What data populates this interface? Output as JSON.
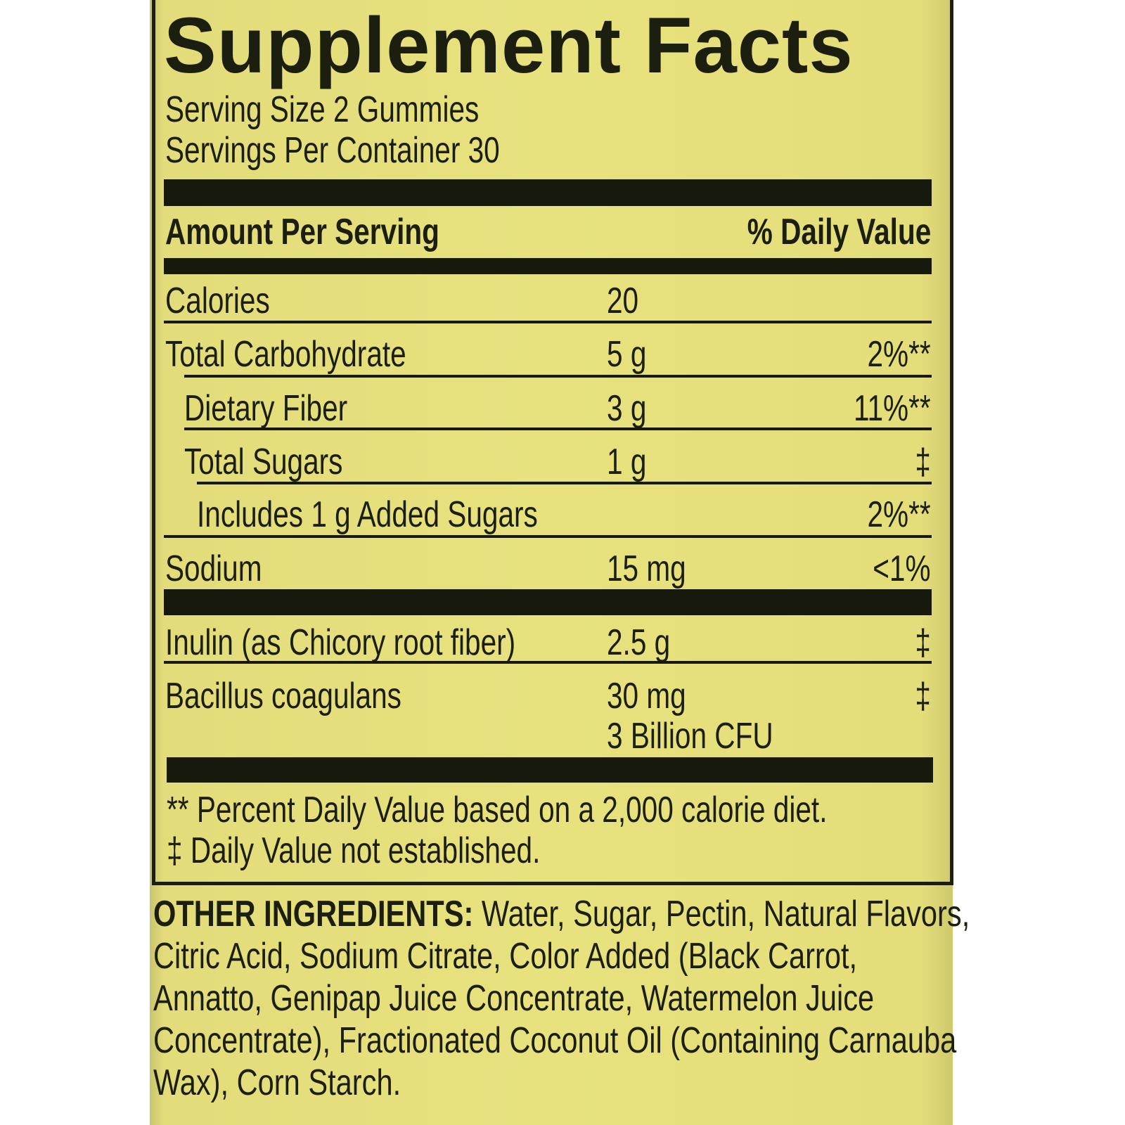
{
  "title": "Supplement Facts",
  "serving_size": "Serving Size 2 Gummies",
  "servings_per_container": "Servings Per Container 30",
  "header": {
    "amount": "Amount Per Serving",
    "dv": "% Daily Value"
  },
  "rows": [
    {
      "name": "Calories",
      "amount": "20",
      "dv": ""
    },
    {
      "name": "Total Carbohydrate",
      "amount": "5 g",
      "dv": "2%**"
    },
    {
      "name": "Dietary Fiber",
      "amount": "3 g",
      "dv": "11%**"
    },
    {
      "name": "Total Sugars",
      "amount": "1 g",
      "dv": "‡"
    },
    {
      "name": "Includes 1 g Added Sugars",
      "amount": "",
      "dv": "2%**"
    },
    {
      "name": "Sodium",
      "amount": "15 mg",
      "dv": "<1%"
    },
    {
      "name": "Inulin (as Chicory root fiber)",
      "amount": "2.5 g",
      "dv": "‡"
    },
    {
      "name": "Bacillus coagulans",
      "amount": "30 mg",
      "amount2": "3 Billion CFU",
      "dv": "‡"
    }
  ],
  "footnotes": [
    "** Percent Daily Value based on a 2,000 calorie diet.",
    "‡ Daily Value not established."
  ],
  "other_ingredients": {
    "label": "OTHER INGREDIENTS:",
    "lines": [
      " Water, Sugar, Pectin, Natural Flavors,",
      "Citric Acid, Sodium Citrate, Color Added (Black Carrot,",
      "Annatto, Genipap Juice Concentrate, Watermelon Juice",
      "Concentrate), Fractionated Coconut Oil (Containing Carnauba",
      "Wax), Corn Starch."
    ]
  },
  "colors": {
    "label_bg": "#e6e07c",
    "ink": "#1c1f10"
  }
}
